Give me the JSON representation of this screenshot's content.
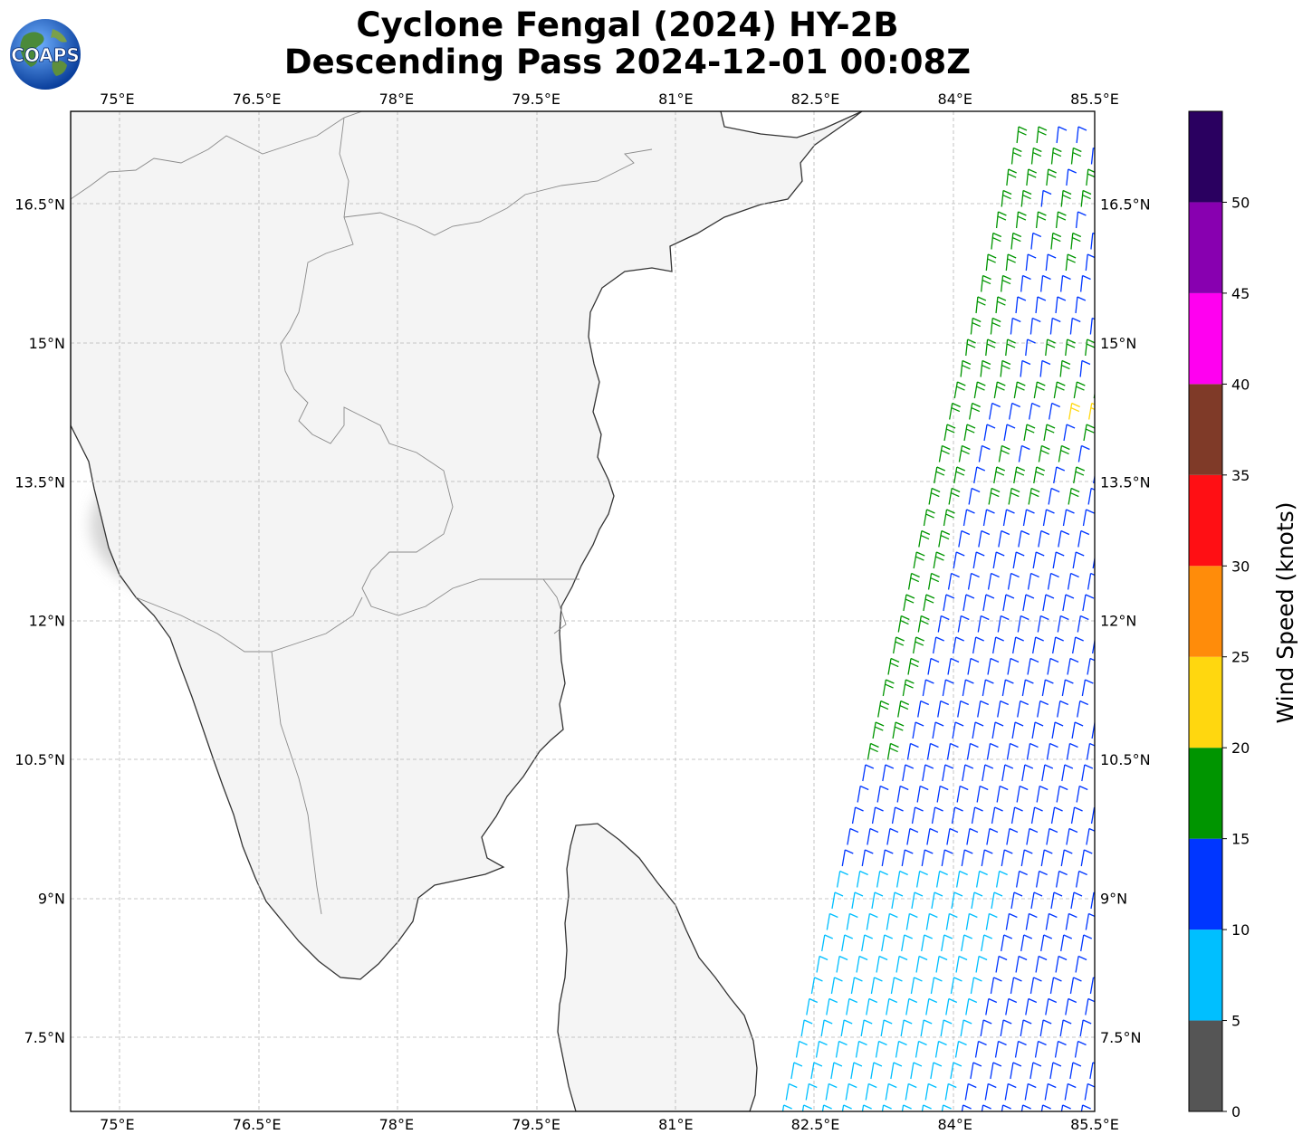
{
  "title": {
    "line1": "Cyclone Fengal (2024) HY-2B",
    "line2": "Descending Pass 2024-12-01 00:08Z"
  },
  "logo": {
    "text": "COAPS",
    "icon": "globe-logo-icon"
  },
  "map": {
    "lon_range": [
      74.5,
      85.5
    ],
    "lat_range": [
      6.7,
      17.5
    ],
    "lon_ticks": [
      "75°E",
      "76.5°E",
      "78°E",
      "79.5°E",
      "81°E",
      "82.5°E",
      "84°E",
      "85.5°E"
    ],
    "lon_tick_values": [
      75,
      76.5,
      78,
      79.5,
      81,
      82.5,
      84,
      85.5
    ],
    "lat_ticks": [
      "16.5°N",
      "15°N",
      "13.5°N",
      "12°N",
      "10.5°N",
      "9°N",
      "7.5°N"
    ],
    "lat_tick_values": [
      16.5,
      15,
      13.5,
      12,
      10.5,
      9,
      7.5
    ],
    "gridlines": true,
    "background": "grayscale IR imagery over land",
    "features": [
      "India peninsula coastline",
      "Sri Lanka",
      "state boundaries"
    ]
  },
  "colorbar": {
    "label": "Wind Speed (knots)",
    "ticks": [
      "0",
      "5",
      "10",
      "15",
      "20",
      "25",
      "30",
      "35",
      "40",
      "45",
      "50"
    ],
    "bins": [
      {
        "from": 0,
        "to": 5,
        "color": "#555555"
      },
      {
        "from": 5,
        "to": 10,
        "color": "#00bfff"
      },
      {
        "from": 10,
        "to": 15,
        "color": "#0036ff"
      },
      {
        "from": 15,
        "to": 20,
        "color": "#009500"
      },
      {
        "from": 20,
        "to": 25,
        "color": "#ffd70f"
      },
      {
        "from": 25,
        "to": 30,
        "color": "#ff8c0a"
      },
      {
        "from": 30,
        "to": 35,
        "color": "#ff0f14"
      },
      {
        "from": 35,
        "to": 40,
        "color": "#7f3a28"
      },
      {
        "from": 40,
        "to": 45,
        "color": "#ff00f0"
      },
      {
        "from": 45,
        "to": 50,
        "color": "#8800b0"
      },
      {
        "from": 50,
        "to": 55,
        "color": "#2a0060"
      }
    ]
  },
  "wind_barbs": {
    "swath": "descending pass, eastern edge of domain",
    "dominant_speed_bins": [
      "5-10 (south)",
      "10-15 (most of swath)",
      "15-20 (west edge and north)",
      "20-25 (isolated near 14.5°N 85.3°E)"
    ]
  }
}
